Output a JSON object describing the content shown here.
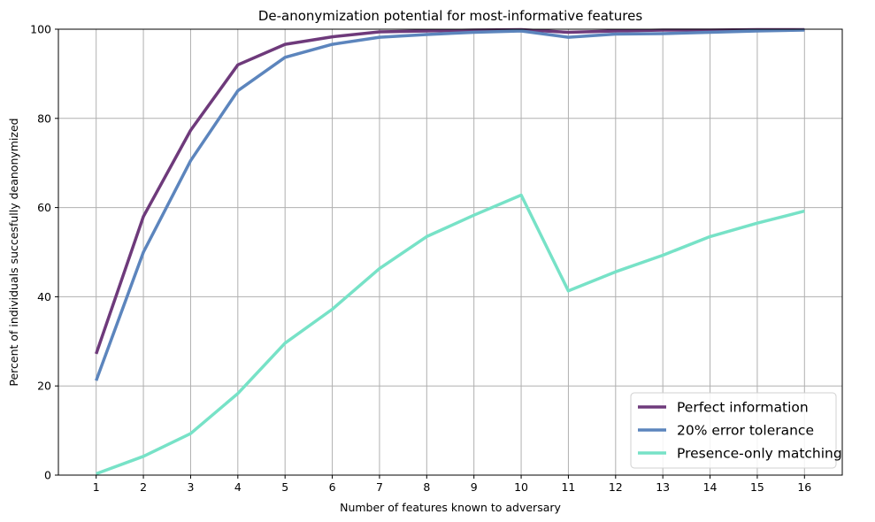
{
  "chart_data": {
    "type": "line",
    "title": "De-anonymization potential for most-informative features",
    "xlabel": "Number of features known to adversary",
    "ylabel": "Percent of individuals succesfully deanonymized",
    "x": [
      1,
      2,
      3,
      4,
      5,
      6,
      7,
      8,
      9,
      10,
      11,
      12,
      13,
      14,
      15,
      16
    ],
    "xlim": [
      0.2,
      16.8
    ],
    "ylim": [
      0,
      100
    ],
    "yticks": [
      0,
      20,
      40,
      60,
      80,
      100
    ],
    "grid": true,
    "legend_position": "lower-right",
    "series": [
      {
        "name": "Perfect information",
        "color": "#6e3a7b",
        "values": [
          27.2,
          58.0,
          77.3,
          92.0,
          96.6,
          98.3,
          99.4,
          99.6,
          99.8,
          99.9,
          99.3,
          99.6,
          99.8,
          99.8,
          99.9,
          99.9
        ]
      },
      {
        "name": "20% error tolerance",
        "color": "#5c85bd",
        "values": [
          21.2,
          50.0,
          70.5,
          86.2,
          93.7,
          96.6,
          98.2,
          98.8,
          99.3,
          99.6,
          98.2,
          98.9,
          99.0,
          99.3,
          99.6,
          99.8
        ]
      },
      {
        "name": "Presence-only matching",
        "color": "#77e2c7",
        "values": [
          0.3,
          4.2,
          9.3,
          18.3,
          29.6,
          37.2,
          46.3,
          53.5,
          58.3,
          62.8,
          41.3,
          45.6,
          49.3,
          53.5,
          56.5,
          59.2
        ]
      }
    ]
  }
}
